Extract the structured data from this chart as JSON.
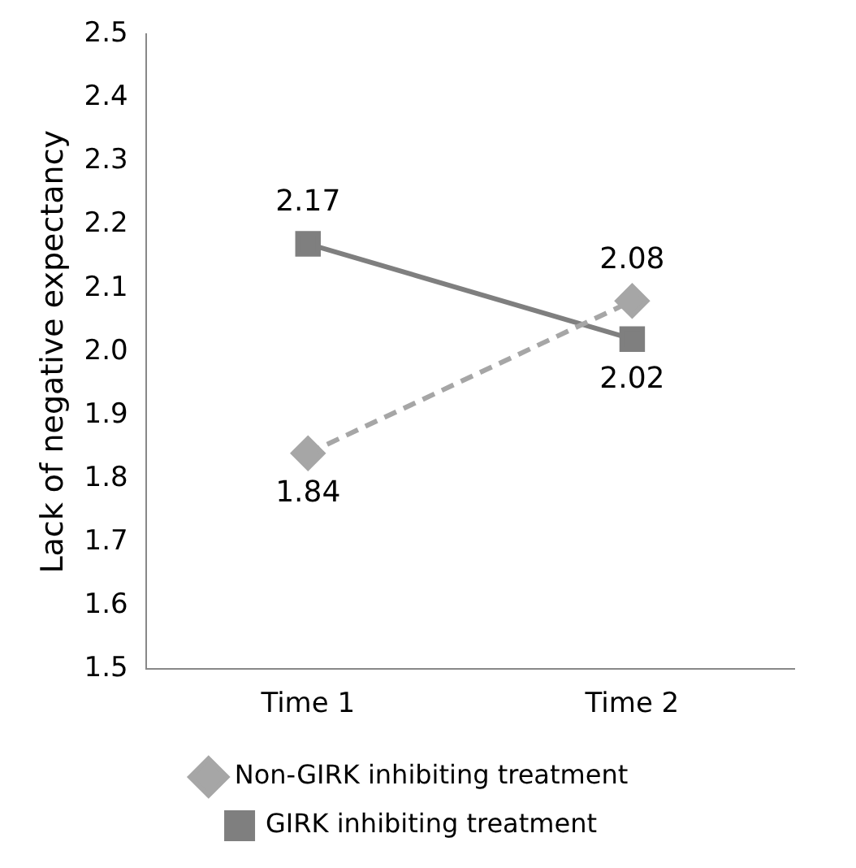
{
  "chart_data": {
    "type": "line",
    "ylabel": "Lack of negative expectancy",
    "categories": [
      "Time 1",
      "Time 2"
    ],
    "series": [
      {
        "name": "Non-GIRK inhibiting treatment",
        "color": "#a6a6a6",
        "values": [
          1.84,
          2.08
        ],
        "marker": "diamond",
        "line_style": "dashed"
      },
      {
        "name": "GIRK inhibiting treatment",
        "color": "#7f7f7f",
        "values": [
          2.17,
          2.02
        ],
        "marker": "square",
        "line_style": "solid"
      }
    ],
    "ylim": [
      1.5,
      2.5
    ],
    "yticks": [
      {
        "value": 1.5,
        "label": "1.5"
      },
      {
        "value": 1.6,
        "label": "1.6"
      },
      {
        "value": 1.7,
        "label": "1.7"
      },
      {
        "value": 1.8,
        "label": "1.8"
      },
      {
        "value": 1.9,
        "label": "1.9"
      },
      {
        "value": 2,
        "label": "2.0"
      },
      {
        "value": 2.1,
        "label": "2.1"
      },
      {
        "value": 2.2,
        "label": "2.2"
      },
      {
        "value": 2.3,
        "label": "2.3"
      },
      {
        "value": 2.4,
        "label": "2.4"
      },
      {
        "value": 2.5,
        "label": "2.5"
      }
    ],
    "grid": false,
    "legend": "bottom",
    "data_labels": true
  }
}
